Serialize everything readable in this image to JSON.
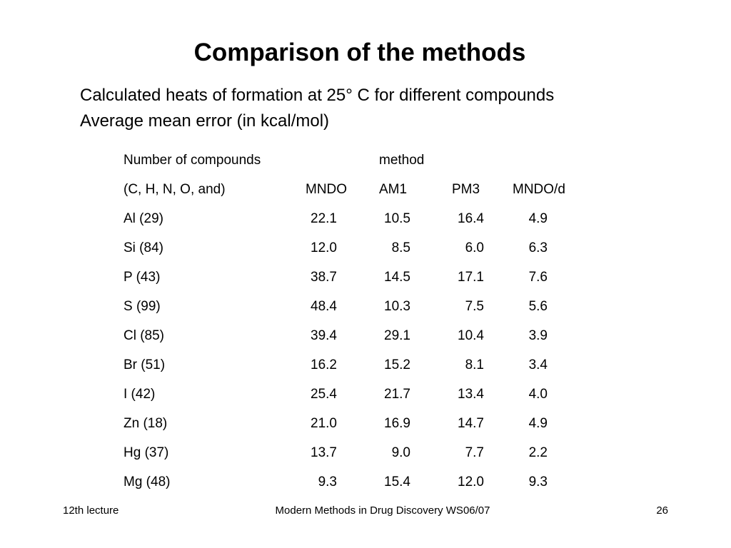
{
  "slide": {
    "title": "Comparison of the methods",
    "subtitle_line1": "Calculated heats of formation at 25° C for different compounds",
    "subtitle_line2": "Average mean error (in kcal/mol)"
  },
  "table": {
    "header_row1": {
      "label": "Number of compounds",
      "group": "method"
    },
    "header_row2": {
      "label": "(C, H, N, O, and)",
      "columns": [
        "MNDO",
        "AM1",
        "PM3",
        "MNDO/d"
      ]
    },
    "rows": [
      {
        "compound": "Al (29)",
        "values": [
          "22.1",
          "10.5",
          "16.4",
          "4.9"
        ]
      },
      {
        "compound": "Si (84)",
        "values": [
          "12.0",
          "8.5",
          "6.0",
          "6.3"
        ]
      },
      {
        "compound": "P (43)",
        "values": [
          "38.7",
          "14.5",
          "17.1",
          "7.6"
        ]
      },
      {
        "compound": "S (99)",
        "values": [
          "48.4",
          "10.3",
          "7.5",
          "5.6"
        ]
      },
      {
        "compound": "Cl (85)",
        "values": [
          "39.4",
          "29.1",
          "10.4",
          "3.9"
        ]
      },
      {
        "compound": "Br (51)",
        "values": [
          "16.2",
          "15.2",
          "8.1",
          "3.4"
        ]
      },
      {
        "compound": "I (42)",
        "values": [
          "25.4",
          "21.7",
          "13.4",
          "4.0"
        ]
      },
      {
        "compound": "Zn (18)",
        "values": [
          "21.0",
          "16.9",
          "14.7",
          "4.9"
        ]
      },
      {
        "compound": "Hg (37)",
        "values": [
          "13.7",
          "9.0",
          "7.7",
          "2.2"
        ]
      },
      {
        "compound": "Mg (48)",
        "values": [
          "9.3",
          "15.4",
          "12.0",
          "9.3"
        ]
      }
    ]
  },
  "footer": {
    "left": "12th lecture",
    "center": "Modern Methods in Drug Discovery WS06/07",
    "page_number": "26"
  }
}
